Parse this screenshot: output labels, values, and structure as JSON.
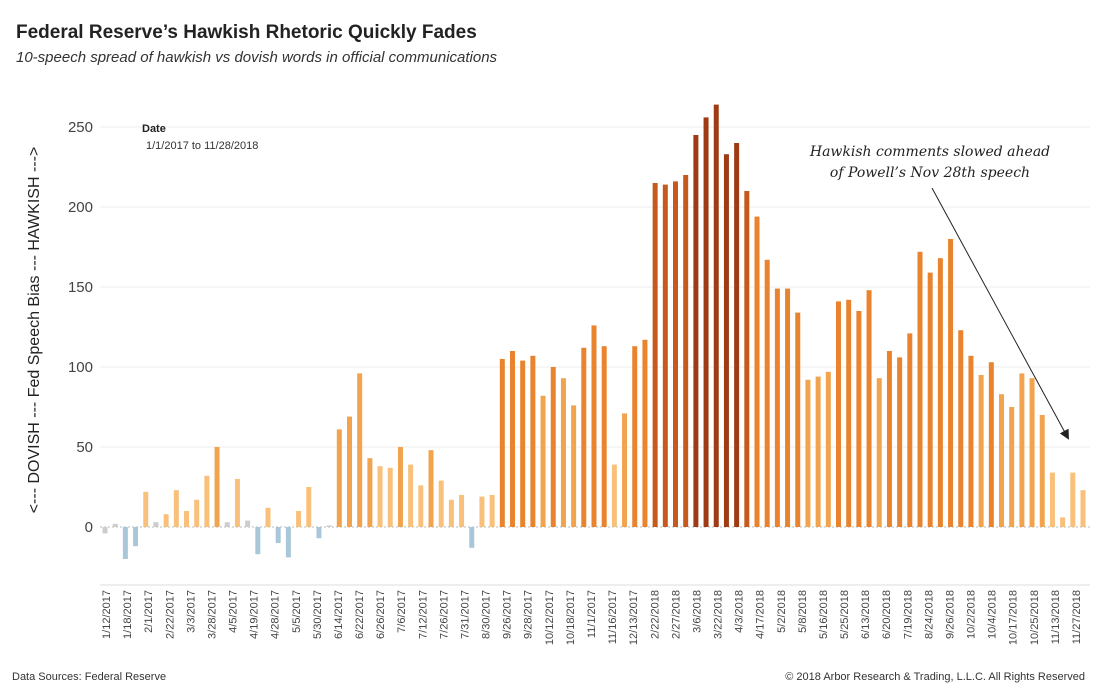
{
  "header": {
    "title": "Federal Reserve’s Hawkish Rhetoric Quickly Fades",
    "subtitle": "10-speech spread of hawkish vs dovish words in official communications"
  },
  "footer": {
    "source": "Data Sources: Federal Reserve",
    "copyright": "© 2018 Arbor Research & Trading, L.L.C. All Rights Reserved"
  },
  "legend": {
    "title": "Date",
    "range": "1/1/2017 to 11/28/2018"
  },
  "annotation": {
    "line1": "Hawkish comments slowed ahead",
    "line2": "of Powell’s Nov 28th speech"
  },
  "chart_data": {
    "type": "bar",
    "ylabel": "<--- DOVISH --- Fed Speech Bias --- HAWKISH --->",
    "ylim": [
      -35,
      275
    ],
    "yticks": [
      0,
      50,
      100,
      150,
      200,
      250
    ],
    "grid": true,
    "color_scale": {
      "negative": "#a9c7d9",
      "near_zero": "#cdcdcd",
      "low": "#f8c07a",
      "mid": "#e9832e",
      "high": "#c65a1c",
      "max": "#9e3b15"
    },
    "x_tick_labels": [
      "1/12/2017",
      "1/18/2017",
      "2/1/2017",
      "2/22/2017",
      "3/3/2017",
      "3/28/2017",
      "4/5/2017",
      "4/19/2017",
      "4/28/2017",
      "5/5/2017",
      "5/30/2017",
      "6/14/2017",
      "6/22/2017",
      "6/26/2017",
      "7/6/2017",
      "7/12/2017",
      "7/26/2017",
      "7/31/2017",
      "8/30/2017",
      "9/26/2017",
      "9/28/2017",
      "10/12/2017",
      "10/18/2017",
      "11/1/2017",
      "11/16/2017",
      "12/13/2017",
      "2/22/2018",
      "2/27/2018",
      "3/6/2018",
      "3/22/2018",
      "4/3/2018",
      "4/17/2018",
      "5/2/2018",
      "5/8/2018",
      "5/16/2018",
      "5/25/2018",
      "6/13/2018",
      "6/20/2018",
      "7/19/2018",
      "8/24/2018",
      "9/26/2018",
      "10/2/2018",
      "10/4/2018",
      "10/17/2018",
      "10/25/2018",
      "11/13/2018",
      "11/27/2018"
    ],
    "values": [
      -4,
      2,
      -20,
      -12,
      22,
      3,
      8,
      23,
      10,
      17,
      32,
      50,
      3,
      30,
      4,
      -17,
      12,
      -10,
      -19,
      10,
      25,
      -7,
      1,
      61,
      69,
      96,
      43,
      38,
      37,
      50,
      39,
      26,
      48,
      29,
      17,
      20,
      -13,
      19,
      20,
      105,
      110,
      104,
      107,
      82,
      100,
      93,
      76,
      112,
      126,
      113,
      39,
      71,
      113,
      117,
      215,
      214,
      216,
      220,
      245,
      256,
      264,
      233,
      240,
      210,
      194,
      167,
      149,
      149,
      134,
      92,
      94,
      97,
      141,
      142,
      135,
      148,
      93,
      110,
      106,
      121,
      172,
      159,
      168,
      180,
      123,
      107,
      95,
      103,
      83,
      75,
      96,
      93,
      70,
      34,
      6,
      34,
      23
    ]
  }
}
